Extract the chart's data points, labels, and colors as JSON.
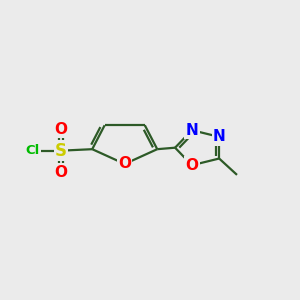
{
  "background_color": "#ebebeb",
  "bond_color": "#2d5a27",
  "atom_colors": {
    "O": "#ff0000",
    "N": "#0000ff",
    "S": "#cccc00",
    "Cl": "#00bb00",
    "C": "#2d5a27"
  },
  "figsize": [
    3.0,
    3.0
  ],
  "dpi": 100
}
